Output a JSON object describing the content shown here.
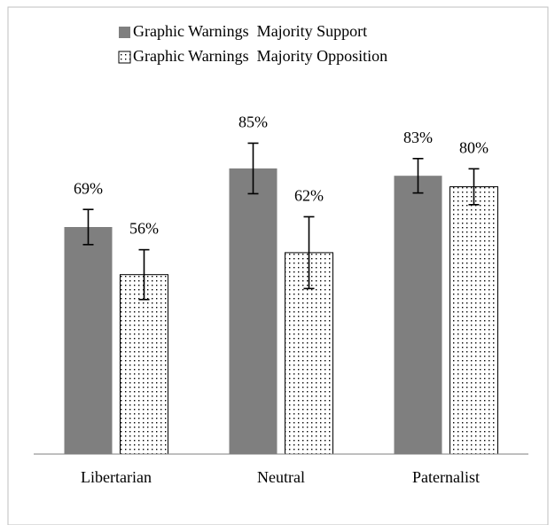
{
  "chart_data": {
    "type": "bar",
    "categories": [
      "Libertarian",
      "Neutral",
      "Paternalist"
    ],
    "series": [
      {
        "name": "Graphic Warnings  Majority Support",
        "color": "#7f7f7f",
        "pattern": "solid",
        "values": [
          69,
          85,
          83
        ],
        "value_labels": [
          "69%",
          "85%",
          "83%"
        ],
        "errors": [
          4.8,
          6.9,
          4.7
        ]
      },
      {
        "name": "Graphic Warnings  Majority Opposition",
        "color": "#000000",
        "pattern": "dots",
        "values": [
          56,
          62,
          80
        ],
        "value_labels": [
          "56%",
          "62%",
          "80%"
        ],
        "errors": [
          6.8,
          9.8,
          4.9
        ]
      }
    ],
    "ylim": [
      7,
      100
    ],
    "grid": false,
    "legend": "top"
  }
}
